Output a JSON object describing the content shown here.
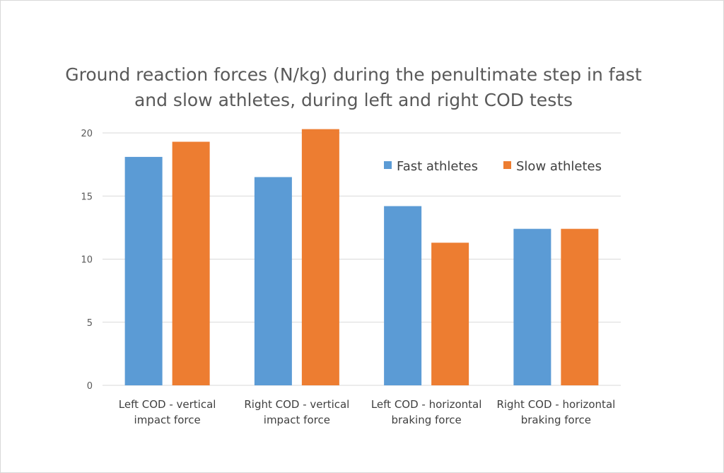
{
  "chart_data": {
    "type": "bar",
    "title": "Ground reaction forces (N/kg) during the penultimate step in fast and slow athletes, during left and right COD tests",
    "categories": [
      [
        "Left COD - vertical",
        "impact force"
      ],
      [
        "Right COD - vertical",
        "impact force"
      ],
      [
        "Left COD - horizontal",
        "braking force"
      ],
      [
        "Right COD - horizontal",
        "braking force"
      ]
    ],
    "series": [
      {
        "name": "Fast athletes",
        "values": [
          18.1,
          16.5,
          14.2,
          12.4
        ],
        "color": "#5b9bd5"
      },
      {
        "name": "Slow athletes",
        "values": [
          19.3,
          20.3,
          11.3,
          12.4
        ],
        "color": "#ed7d31"
      }
    ],
    "yticks": [
      "0",
      "5",
      "10",
      "15",
      "20"
    ],
    "ylim": [
      0,
      20
    ],
    "grid": true,
    "legend_position": "top-right"
  }
}
